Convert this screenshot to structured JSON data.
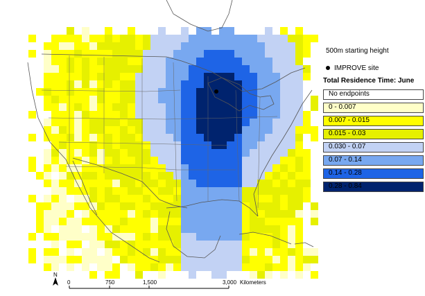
{
  "legend": {
    "starting_height": "500m starting height",
    "site_label": "IMPROVE site",
    "title": "Total Residence Time: June",
    "items": [
      {
        "label": "No endpoints",
        "color": "#ffffff"
      },
      {
        "label": "0 - 0.007",
        "color": "#ffffc8"
      },
      {
        "label": "0.007 - 0.015",
        "color": "#ffff00"
      },
      {
        "label": "0.015 - 0.03",
        "color": "#e6f000"
      },
      {
        "label": "0.030 - 0.07",
        "color": "#c2d2f4"
      },
      {
        "label": "0.07 - 0.14",
        "color": "#78a8f0"
      },
      {
        "label": "0.14 - 0.28",
        "color": "#1e64e6"
      },
      {
        "label": "0.28 - 0.84",
        "color": "#00236e"
      }
    ]
  },
  "scale_bar": {
    "north_label": "N",
    "ticks": [
      "0",
      "750",
      "1,500",
      "3,000"
    ],
    "unit": "Kilometers"
  }
}
